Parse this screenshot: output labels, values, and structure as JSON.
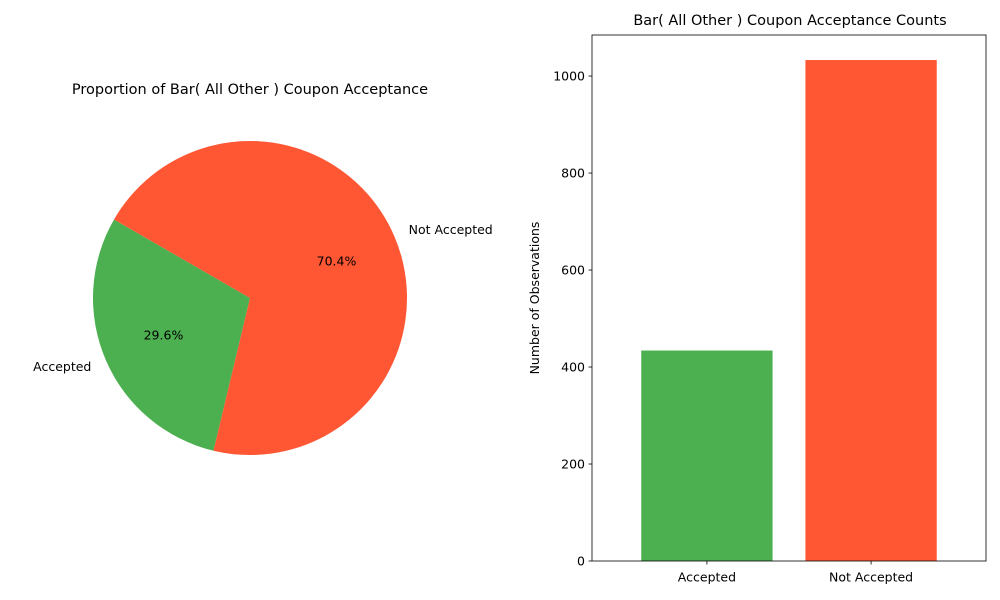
{
  "chart_data": [
    {
      "type": "pie",
      "title": "Proportion of Bar( All Other ) Coupon Acceptance",
      "labels": [
        "Accepted",
        "Not Accepted"
      ],
      "values": [
        29.6,
        70.4
      ],
      "value_labels": [
        "29.6%",
        "70.4%"
      ],
      "colors": [
        "#4caf50",
        "#ff5733"
      ],
      "start_angle_deg": 150,
      "direction": "counterclockwise"
    },
    {
      "type": "bar",
      "title": "Bar( All Other ) Coupon Acceptance Counts",
      "categories": [
        "Accepted",
        "Not Accepted"
      ],
      "values": [
        434,
        1033
      ],
      "colors": [
        "#4caf50",
        "#ff5733"
      ],
      "xlabel": "",
      "ylabel": "Number of Observations",
      "ylim": [
        0,
        1084.65
      ],
      "yticks": [
        0,
        200,
        400,
        600,
        800,
        1000
      ],
      "grid": false
    }
  ]
}
